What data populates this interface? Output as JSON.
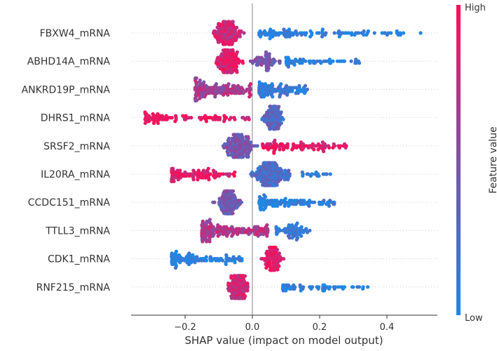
{
  "chart_data": {
    "type": "scatter",
    "subtype": "shap-beeswarm",
    "xlabel": "SHAP value (impact on model output)",
    "xlim": [
      -0.355,
      0.545
    ],
    "xticks": [
      {
        "value": -0.2,
        "label": "−0.2"
      },
      {
        "value": 0.0,
        "label": "0.0"
      },
      {
        "value": 0.2,
        "label": "0.2"
      },
      {
        "value": 0.4,
        "label": "0.4"
      }
    ],
    "colorbar": {
      "label": "Feature value",
      "high_label": "High",
      "low_label": "Low",
      "low_color": "#1E88E5",
      "high_color": "#FF0D57"
    },
    "features": [
      {
        "name": "FBXW4_mRNA",
        "segments": [
          [
            -0.13,
            -0.02,
            150,
            0.8
          ],
          [
            0.02,
            0.46,
            110,
            0.05
          ],
          [
            0.5,
            0.5,
            1,
            0.1
          ]
        ]
      },
      {
        "name": "ABHD14A_mRNA",
        "segments": [
          [
            -0.12,
            -0.02,
            130,
            0.85
          ],
          [
            -0.02,
            0.1,
            60,
            0.45
          ],
          [
            0.1,
            0.33,
            60,
            0.05
          ]
        ]
      },
      {
        "name": "ANKRD19P_mRNA",
        "segments": [
          [
            -0.17,
            0.0,
            150,
            0.65
          ],
          [
            0.02,
            0.17,
            110,
            0.12
          ]
        ]
      },
      {
        "name": "DHRS1_mRNA",
        "segments": [
          [
            -0.32,
            -0.05,
            90,
            0.95
          ],
          [
            -0.04,
            0.0,
            6,
            0.8
          ],
          [
            0.02,
            0.1,
            110,
            0.3
          ]
        ]
      },
      {
        "name": "SRSF2_mRNA",
        "segments": [
          [
            -0.1,
            0.02,
            150,
            0.45
          ],
          [
            0.03,
            0.28,
            100,
            0.9
          ]
        ]
      },
      {
        "name": "IL20RA_mRNA",
        "segments": [
          [
            -0.24,
            -0.05,
            100,
            0.9
          ],
          [
            -0.02,
            0.13,
            190,
            0.25
          ],
          [
            0.13,
            0.24,
            18,
            0.05
          ]
        ]
      },
      {
        "name": "CCDC151_mRNA",
        "segments": [
          [
            -0.12,
            -0.02,
            120,
            0.45
          ],
          [
            0.02,
            0.25,
            110,
            0.05
          ]
        ]
      },
      {
        "name": "TTLL3_mRNA",
        "segments": [
          [
            -0.15,
            0.05,
            170,
            0.7
          ],
          [
            0.05,
            0.19,
            70,
            0.15
          ]
        ]
      },
      {
        "name": "CDK1_mRNA",
        "segments": [
          [
            -0.24,
            -0.03,
            110,
            0.05
          ],
          [
            0.02,
            0.1,
            110,
            0.9
          ]
        ]
      },
      {
        "name": "RNF215_mRNA",
        "segments": [
          [
            -0.08,
            0.0,
            140,
            0.8
          ],
          [
            0.09,
            0.35,
            60,
            0.05
          ]
        ]
      }
    ]
  }
}
